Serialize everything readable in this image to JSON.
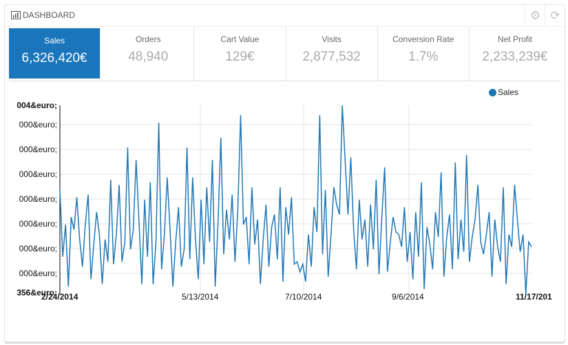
{
  "header": {
    "title": "DASHBOARD",
    "icon": "bar-chart-icon"
  },
  "kpis": [
    {
      "label": "Sales",
      "value": "6,326,420€",
      "active": true
    },
    {
      "label": "Orders",
      "value": "48,940"
    },
    {
      "label": "Cart Value",
      "value": "129€"
    },
    {
      "label": "Visits",
      "value": "2,877,532"
    },
    {
      "label": "Conversion Rate",
      "value": "1.7%"
    },
    {
      "label": "Net Profit",
      "value": "2,233,239€"
    }
  ],
  "chart_data": {
    "type": "line",
    "legend": [
      "Sales"
    ],
    "legend_position": "top-right",
    "color": "#1f77b4",
    "y_tick_labels": [
      "004&euro;",
      "000&euro;",
      "000&euro;",
      "000&euro;",
      "000&euro;",
      "000&euro;",
      "000&euro;",
      "000&euro;",
      "356&euro;"
    ],
    "x_tick_labels": [
      "2/24/2014",
      "5/13/2014",
      "7/10/2014",
      "9/6/2014",
      "11/17/201"
    ],
    "ylim": [
      0,
      7.6
    ],
    "series": [
      {
        "name": "Sales",
        "values": [
          4.2,
          1.5,
          2.8,
          0.3,
          3.1,
          2.6,
          3.9,
          2.2,
          1.1,
          2.8,
          4.0,
          0.6,
          2.0,
          3.3,
          2.4,
          0.4,
          2.2,
          1.3,
          4.6,
          1.2,
          2.4,
          4.4,
          1.3,
          2.1,
          5.9,
          1.8,
          2.6,
          5.4,
          2.9,
          0.4,
          3.8,
          1.5,
          4.5,
          0.4,
          2.1,
          6.9,
          1.0,
          2.4,
          4.7,
          2.6,
          0.3,
          2.1,
          3.5,
          1.1,
          1.8,
          5.9,
          1.4,
          4.7,
          2.2,
          0.6,
          3.8,
          1.2,
          4.3,
          2.1,
          5.4,
          0.3,
          2.9,
          6.3,
          1.6,
          3.4,
          2.2,
          4.0,
          1.3,
          3.4,
          7.2,
          2.8,
          3.1,
          1.2,
          4.3,
          2.0,
          3.0,
          0.4,
          2.2,
          3.6,
          1.1,
          2.7,
          3.2,
          1.4,
          4.3,
          0.5,
          3.5,
          2.4,
          3.9,
          1.2,
          1.3,
          0.9,
          1.2,
          0.5,
          2.4,
          1.1,
          3.5,
          2.5,
          7.2,
          1.6,
          4.2,
          0.7,
          2.4,
          4.3,
          3.6,
          3.2,
          7.6,
          5.4,
          3.2,
          5.5,
          2.6,
          1.0,
          3.8,
          2.2,
          3.0,
          1.1,
          3.6,
          1.8,
          4.6,
          0.8,
          3.1,
          5.1,
          0.9,
          2.1,
          3.1,
          2.5,
          2.4,
          1.9,
          3.5,
          1.3,
          2.5,
          0.6,
          3.3,
          1.5,
          4.5,
          0.2,
          2.7,
          2.0,
          1.0,
          3.3,
          2.3,
          4.9,
          0.7,
          2.3,
          3.2,
          1.0,
          5.3,
          1.4,
          3.0,
          1.7,
          5.6,
          1.3,
          2.3,
          3.0,
          4.4,
          2.1,
          1.6,
          2.4,
          3.3,
          0.7,
          3.0,
          1.9,
          1.3,
          4.3,
          0.4,
          2.4,
          1.9,
          4.4,
          3.0,
          1.7,
          2.4,
          0.0,
          2.1,
          1.9
        ]
      }
    ]
  }
}
